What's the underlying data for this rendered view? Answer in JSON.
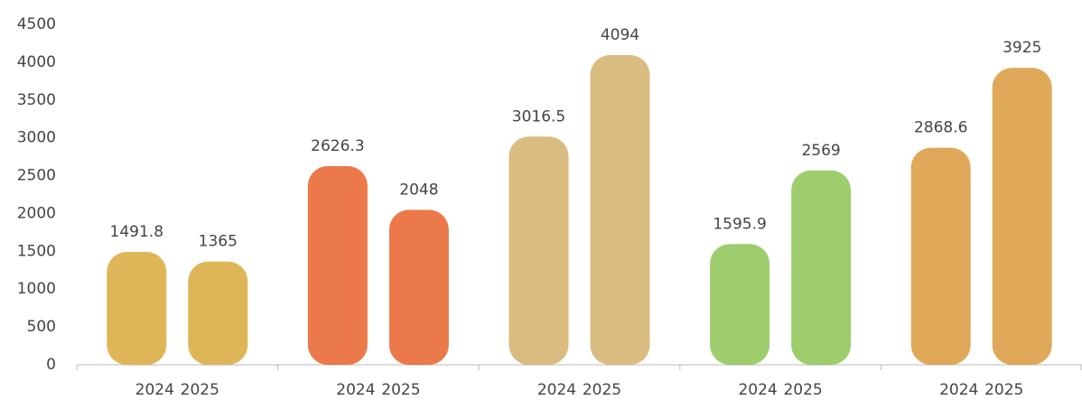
{
  "chart_data": {
    "type": "pictograph",
    "categories": [
      "2024",
      "2025",
      "2024",
      "2025",
      "2024",
      "2025",
      "2024",
      "2025",
      "2024",
      "2025"
    ],
    "values": [
      1491.8,
      1365,
      2626.3,
      2048,
      3016.5,
      4094,
      1595.9,
      2569,
      2868.6,
      3925
    ],
    "colors": [
      "#d9a93a",
      "#d9a93a",
      "#e8622a",
      "#e8622a",
      "#d2b06a",
      "#d2b06a",
      "#8cc454",
      "#8cc454",
      "#d99a3c",
      "#d99a3c"
    ],
    "ylim": [
      0,
      4500
    ],
    "yticks": [
      0,
      500,
      1000,
      1500,
      2000,
      2500,
      3000,
      3500,
      4000,
      4500
    ],
    "grid": false
  }
}
